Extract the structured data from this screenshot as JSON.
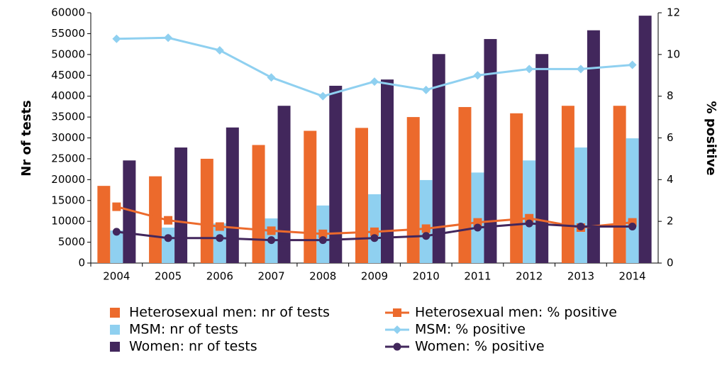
{
  "chart_data": {
    "type": "bar",
    "categories": [
      "2004",
      "2005",
      "2006",
      "2007",
      "2008",
      "2009",
      "2010",
      "2011",
      "2012",
      "2013",
      "2014"
    ],
    "y_label": "Nr of tests",
    "y2_label": "% positive",
    "ylim": [
      0,
      60000
    ],
    "yticks": [
      0,
      5000,
      10000,
      15000,
      20000,
      25000,
      30000,
      35000,
      40000,
      45000,
      50000,
      55000,
      60000
    ],
    "y2lim": [
      0,
      12
    ],
    "y2ticks": [
      0,
      2,
      4,
      6,
      8,
      10,
      12
    ],
    "series": [
      {
        "name": "Heterosexual men: nr of tests",
        "type": "bar",
        "color": "#ec6a2c",
        "values": [
          18500,
          20800,
          25000,
          28300,
          31700,
          32400,
          35000,
          37400,
          35900,
          37700,
          37700
        ]
      },
      {
        "name": "MSM: nr of tests",
        "type": "bar",
        "color": "#8fd0f0",
        "values": [
          7800,
          8500,
          9500,
          10700,
          13800,
          16500,
          19900,
          21700,
          24600,
          27700,
          29900
        ]
      },
      {
        "name": "Women: nr of tests",
        "type": "bar",
        "color": "#42275c",
        "values": [
          24600,
          27700,
          32500,
          37700,
          42500,
          44000,
          50100,
          53700,
          50100,
          55800,
          59300
        ]
      },
      {
        "name": "Heterosexual men: % positive",
        "type": "line",
        "marker": "square",
        "axis": "y2",
        "color": "#ec6a2c",
        "values": [
          2.7,
          2.05,
          1.75,
          1.55,
          1.4,
          1.5,
          1.65,
          1.95,
          2.15,
          1.7,
          1.95
        ]
      },
      {
        "name": "MSM: % positive",
        "type": "line",
        "marker": "diamond",
        "axis": "y2",
        "color": "#8fd0f0",
        "values": [
          10.75,
          10.8,
          10.2,
          8.9,
          8.0,
          8.7,
          8.3,
          9.0,
          9.3,
          9.3,
          9.5
        ]
      },
      {
        "name": "Women: % positive",
        "type": "line",
        "marker": "circle",
        "axis": "y2",
        "color": "#42275c",
        "values": [
          1.5,
          1.2,
          1.2,
          1.1,
          1.1,
          1.2,
          1.3,
          1.7,
          1.9,
          1.75,
          1.75
        ]
      }
    ]
  }
}
